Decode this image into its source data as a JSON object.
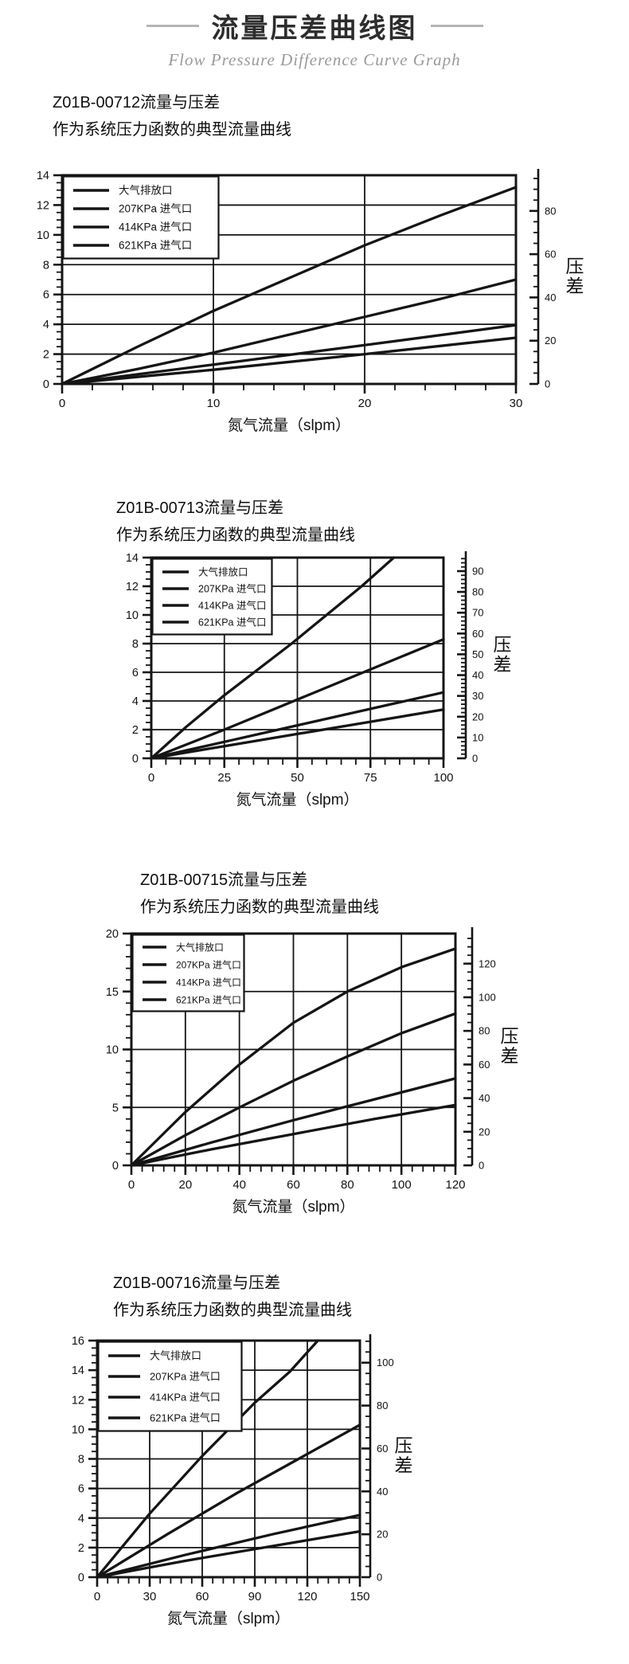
{
  "page": {
    "title": "流量压差曲线图",
    "subtitle": "Flow Pressure Difference Curve Graph"
  },
  "colors": {
    "line": "#151515",
    "text": "#121212",
    "rule_gray": "#b5b5b5",
    "subtitle_gray": "#9a9a9a"
  },
  "chart_data": [
    {
      "type": "line",
      "model": "Z01B-00712",
      "title": "Z01B-00712流量与压差",
      "subtitle": "作为系统压力函数的典型流量曲线",
      "xlabel": "氮气流量（slpm）",
      "right_axis_label": "压差",
      "grid": true,
      "legend_position": "top-left",
      "xlim": [
        0,
        30
      ],
      "x_ticks": [
        0,
        10,
        20,
        30
      ],
      "x_minor_step": 2,
      "ylim": [
        0,
        14
      ],
      "y_ticks": [
        0,
        2,
        4,
        6,
        8,
        10,
        12,
        14
      ],
      "y_minor_step": 0.5,
      "right_ylim": [
        0,
        96.5
      ],
      "right_ticks": [
        0,
        20,
        40,
        60,
        80
      ],
      "right_minor_step": 5,
      "series": [
        {
          "name": "大气排放口",
          "points": [
            [
              0,
              0
            ],
            [
              5,
              2.5
            ],
            [
              10,
              4.9
            ],
            [
              15,
              7.1
            ],
            [
              20,
              9.3
            ],
            [
              25,
              11.3
            ],
            [
              30,
              13.2
            ]
          ]
        },
        {
          "name": "207KPa 进气口",
          "points": [
            [
              0,
              0
            ],
            [
              5,
              1.0
            ],
            [
              10,
              2.1
            ],
            [
              15,
              3.3
            ],
            [
              20,
              4.5
            ],
            [
              25,
              5.7
            ],
            [
              30,
              7.0
            ]
          ]
        },
        {
          "name": "414KPa 进气口",
          "points": [
            [
              0,
              0
            ],
            [
              10,
              1.3
            ],
            [
              20,
              2.6
            ],
            [
              30,
              3.95
            ]
          ]
        },
        {
          "name": "621KPa 进气口",
          "points": [
            [
              0,
              0
            ],
            [
              10,
              0.95
            ],
            [
              20,
              2.0
            ],
            [
              30,
              3.1
            ]
          ]
        }
      ]
    },
    {
      "type": "line",
      "model": "Z01B-00713",
      "title": "Z01B-00713流量与压差",
      "subtitle": "作为系统压力函数的典型流量曲线",
      "xlabel": "氮气流量（slpm）",
      "right_axis_label": "压差",
      "grid": true,
      "legend_position": "top-left",
      "xlim": [
        0,
        100
      ],
      "x_ticks": [
        0,
        25,
        50,
        75,
        100
      ],
      "x_minor_step": 5,
      "ylim": [
        0,
        14
      ],
      "y_ticks": [
        0,
        2,
        4,
        6,
        8,
        10,
        12,
        14
      ],
      "y_minor_step": 0.5,
      "right_ylim": [
        0,
        96.5
      ],
      "right_ticks": [
        0,
        10,
        20,
        30,
        40,
        50,
        60,
        70,
        80,
        90
      ],
      "right_minor_step": 2,
      "series": [
        {
          "name": "大气排放口",
          "points": [
            [
              0,
              0
            ],
            [
              12,
              2.2
            ],
            [
              25,
              4.4
            ],
            [
              48,
              8.0
            ],
            [
              72,
              12.0
            ],
            [
              83,
              14.0
            ]
          ]
        },
        {
          "name": "207KPa 进气口",
          "points": [
            [
              0,
              0
            ],
            [
              25,
              2.0
            ],
            [
              50,
              4.1
            ],
            [
              75,
              6.2
            ],
            [
              100,
              8.3
            ]
          ]
        },
        {
          "name": "414KPa 进气口",
          "points": [
            [
              0,
              0
            ],
            [
              25,
              1.15
            ],
            [
              50,
              2.3
            ],
            [
              75,
              3.45
            ],
            [
              100,
              4.6
            ]
          ]
        },
        {
          "name": "621KPa 进气口",
          "points": [
            [
              0,
              0
            ],
            [
              25,
              0.85
            ],
            [
              50,
              1.7
            ],
            [
              75,
              2.55
            ],
            [
              100,
              3.4
            ]
          ]
        }
      ]
    },
    {
      "type": "line",
      "model": "Z01B-00715",
      "title": "Z01B-00715流量与压差",
      "subtitle": "作为系统压力函数的典型流量曲线",
      "xlabel": "氮气流量（slpm）",
      "right_axis_label": "压差",
      "grid": true,
      "legend_position": "top-left",
      "xlim": [
        0,
        120
      ],
      "x_ticks": [
        0,
        20,
        40,
        60,
        80,
        100,
        120
      ],
      "x_minor_step": 4,
      "ylim": [
        0,
        20
      ],
      "y_ticks": [
        0,
        5,
        10,
        15,
        20
      ],
      "y_minor_step": 1,
      "right_ylim": [
        0,
        137.9
      ],
      "right_ticks": [
        0,
        20,
        40,
        60,
        80,
        100,
        120
      ],
      "right_minor_step": 5,
      "series": [
        {
          "name": "大气排放口",
          "points": [
            [
              0,
              0
            ],
            [
              20,
              4.6
            ],
            [
              40,
              8.7
            ],
            [
              60,
              12.3
            ],
            [
              80,
              15.0
            ],
            [
              100,
              17.1
            ],
            [
              120,
              18.7
            ]
          ]
        },
        {
          "name": "207KPa 进气口",
          "points": [
            [
              0,
              0
            ],
            [
              20,
              2.6
            ],
            [
              40,
              5.0
            ],
            [
              60,
              7.3
            ],
            [
              80,
              9.4
            ],
            [
              100,
              11.4
            ],
            [
              120,
              13.1
            ]
          ]
        },
        {
          "name": "414KPa 进气口",
          "points": [
            [
              0,
              0
            ],
            [
              30,
              2.0
            ],
            [
              60,
              3.9
            ],
            [
              90,
              5.7
            ],
            [
              120,
              7.5
            ]
          ]
        },
        {
          "name": "621KPa 进气口",
          "points": [
            [
              0,
              0
            ],
            [
              30,
              1.4
            ],
            [
              60,
              2.7
            ],
            [
              90,
              4.0
            ],
            [
              120,
              5.2
            ]
          ]
        }
      ]
    },
    {
      "type": "line",
      "model": "Z01B-00716",
      "title": "Z01B-00716流量与压差",
      "subtitle": "作为系统压力函数的典型流量曲线",
      "xlabel": "氮气流量（slpm）",
      "right_axis_label": "压差",
      "grid": true,
      "legend_position": "top-left",
      "xlim": [
        0,
        150
      ],
      "x_ticks": [
        0,
        30,
        60,
        90,
        120,
        150
      ],
      "x_minor_step": 6,
      "ylim": [
        0,
        16
      ],
      "y_ticks": [
        0,
        2,
        4,
        6,
        8,
        10,
        12,
        14,
        16
      ],
      "y_minor_step": 0.5,
      "right_ylim": [
        0,
        110.3
      ],
      "right_ticks": [
        0,
        20,
        40,
        60,
        80,
        100
      ],
      "right_minor_step": 5,
      "series": [
        {
          "name": "大气排放口",
          "points": [
            [
              0,
              0
            ],
            [
              30,
              4.3
            ],
            [
              60,
              8.2
            ],
            [
              90,
              11.8
            ],
            [
              110,
              13.9
            ],
            [
              126,
              16.0
            ]
          ]
        },
        {
          "name": "207KPa 进气口",
          "points": [
            [
              0,
              0
            ],
            [
              40,
              2.9
            ],
            [
              80,
              5.7
            ],
            [
              115,
              8.0
            ],
            [
              150,
              10.3
            ]
          ]
        },
        {
          "name": "414KPa 进气口",
          "points": [
            [
              0,
              0
            ],
            [
              50,
              1.5
            ],
            [
              100,
              2.9
            ],
            [
              150,
              4.2
            ]
          ]
        },
        {
          "name": "621KPa 进气口",
          "points": [
            [
              0,
              0
            ],
            [
              50,
              1.1
            ],
            [
              100,
              2.1
            ],
            [
              150,
              3.1
            ]
          ]
        }
      ]
    }
  ]
}
